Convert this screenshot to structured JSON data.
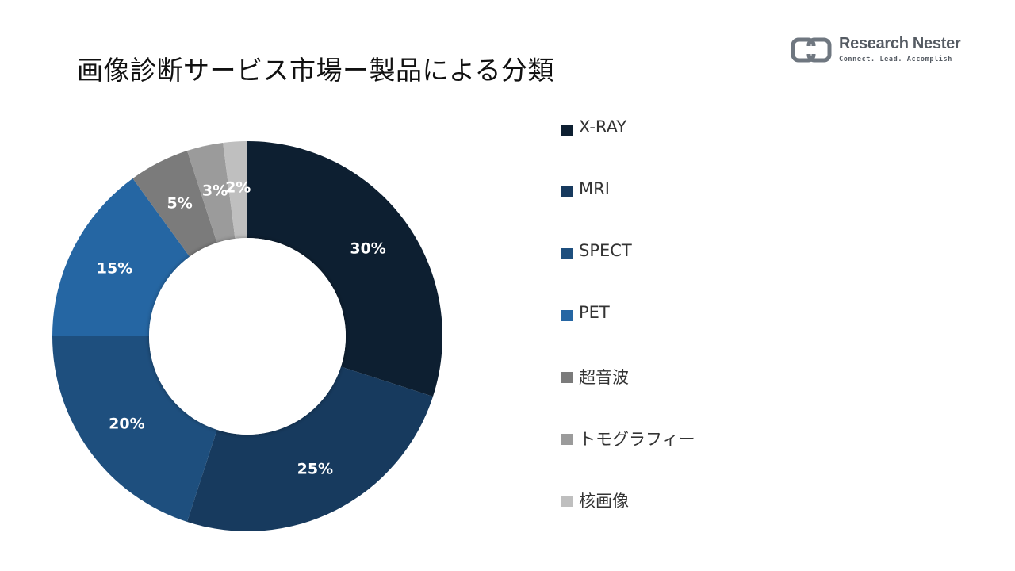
{
  "title": "画像診断サービス市場ー製品による分類",
  "logo": {
    "name": "Research Nester",
    "tagline": "Connect. Lead. Accomplish"
  },
  "chart_data": {
    "type": "pie",
    "donut": true,
    "title": "",
    "legend_position": "right",
    "categories": [
      "X-RAY",
      "MRI",
      "SPECT",
      "PET",
      "超音波",
      "トモグラフィー",
      "核画像"
    ],
    "values": [
      30,
      25,
      20,
      15,
      5,
      3,
      2
    ],
    "labels": [
      "30%",
      "25%",
      "20%",
      "15%",
      "5%",
      "3%",
      "2%"
    ],
    "colors": [
      "#0d1f31",
      "#173a5e",
      "#1e4f7e",
      "#2566a3",
      "#7b7b7b",
      "#9b9b9b",
      "#bfbfbf"
    ]
  }
}
